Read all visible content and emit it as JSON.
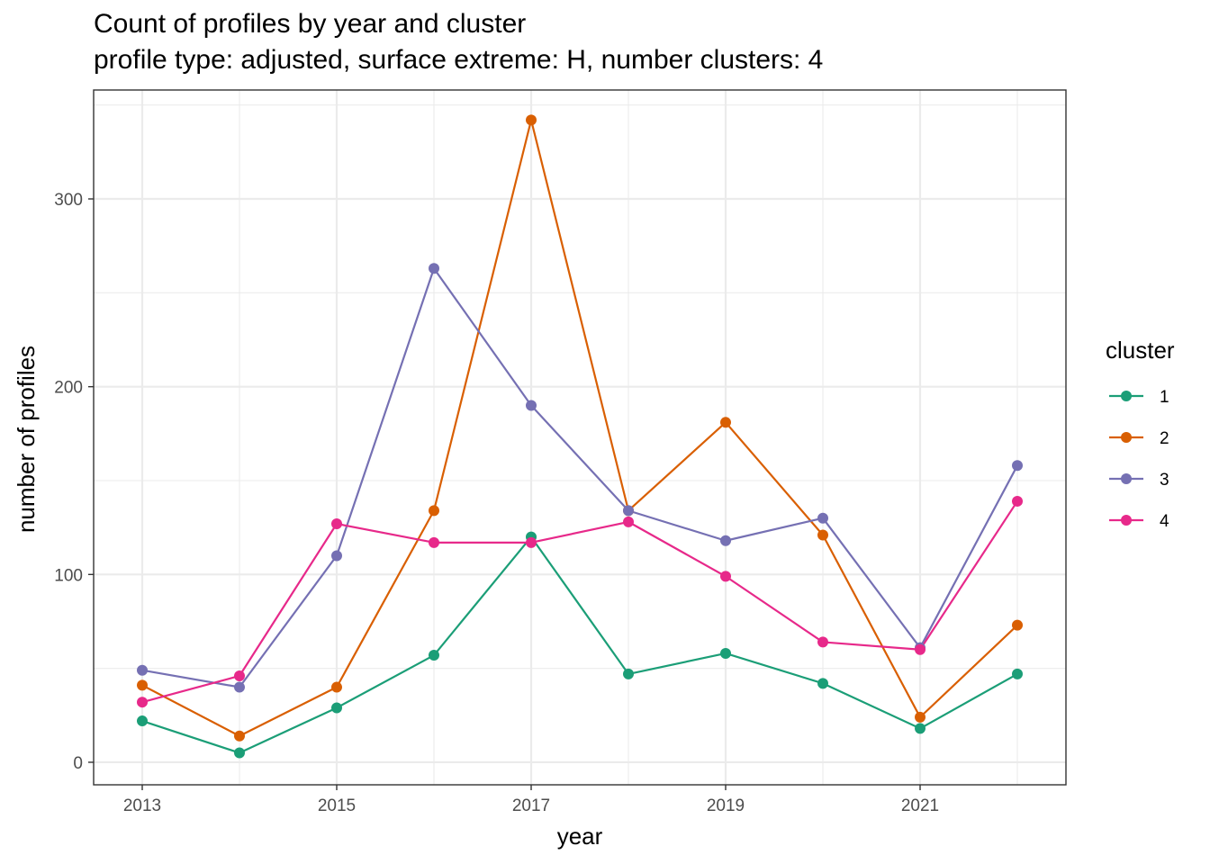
{
  "chart_data": {
    "type": "line",
    "title": "Count of profiles by year and cluster",
    "subtitle": "profile type: adjusted, surface extreme: H, number clusters: 4",
    "xlabel": "year",
    "ylabel": "number of profiles",
    "x": [
      2013,
      2014,
      2015,
      2016,
      2017,
      2018,
      2019,
      2020,
      2021,
      2022
    ],
    "xlim": [
      2012.5,
      2022.5
    ],
    "ylim": [
      -12,
      358
    ],
    "x_ticks": [
      2013,
      2015,
      2017,
      2019,
      2021
    ],
    "y_ticks": [
      0,
      100,
      200,
      300
    ],
    "grid": true,
    "legend": {
      "title": "cluster",
      "position": "right"
    },
    "series": [
      {
        "name": "1",
        "color": "#1B9E77",
        "values": [
          22,
          5,
          29,
          57,
          120,
          47,
          58,
          42,
          18,
          47
        ]
      },
      {
        "name": "2",
        "color": "#D95F02",
        "values": [
          41,
          14,
          40,
          134,
          342,
          134,
          181,
          121,
          24,
          73
        ]
      },
      {
        "name": "3",
        "color": "#7570B3",
        "values": [
          49,
          40,
          110,
          263,
          190,
          134,
          118,
          130,
          61,
          158
        ]
      },
      {
        "name": "4",
        "color": "#E7298A",
        "values": [
          32,
          46,
          127,
          117,
          117,
          128,
          99,
          64,
          60,
          139
        ]
      }
    ]
  }
}
